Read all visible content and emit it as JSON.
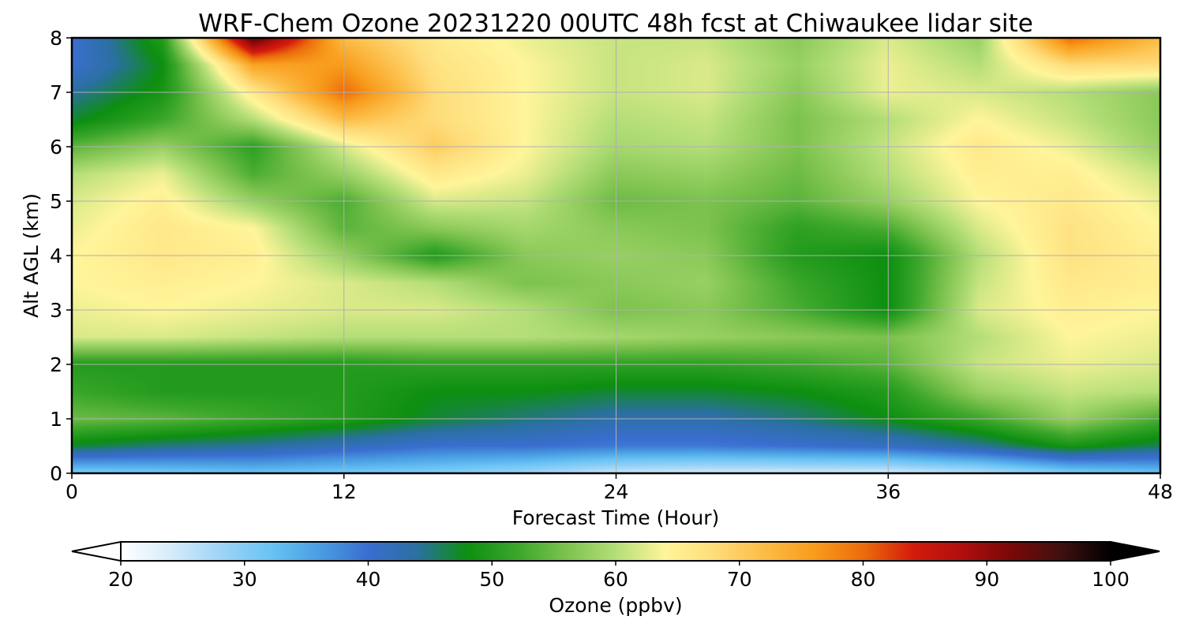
{
  "chart_data": {
    "type": "heatmap",
    "title": "WRF-Chem Ozone  20231220 00UTC 48h fcst at Chiwaukee lidar site",
    "xlabel": "Forecast Time (Hour)",
    "ylabel": "Alt AGL (km)",
    "xlim": [
      0,
      48
    ],
    "ylim": [
      0,
      8
    ],
    "xticks": [
      "0",
      "12",
      "24",
      "36",
      "48"
    ],
    "yticks": [
      "0",
      "1",
      "2",
      "3",
      "4",
      "5",
      "6",
      "7",
      "8"
    ],
    "grid": true,
    "colorbar": {
      "label": "Ozone  (ppbv)",
      "range": [
        20,
        100
      ],
      "ticks": [
        "20",
        "30",
        "40",
        "50",
        "60",
        "70",
        "80",
        "90",
        "100"
      ],
      "extend": "both",
      "colors": [
        "#ffffff",
        "#d6ecfa",
        "#9fd4f6",
        "#6ac4f5",
        "#4a9ee2",
        "#3a6ed0",
        "#2a70a0",
        "#0d8f10",
        "#3aa62a",
        "#7cc24e",
        "#b4de78",
        "#fff59a",
        "#fedc7a",
        "#fcbc45",
        "#f89c1c",
        "#ec6c0c",
        "#d41c0c",
        "#b00e0e",
        "#7a0808",
        "#401010",
        "#000000"
      ]
    },
    "hours": [
      0,
      4,
      8,
      12,
      16,
      20,
      24,
      28,
      32,
      36,
      40,
      44,
      48
    ],
    "altitudes_km": [
      0,
      0.5,
      1,
      1.5,
      2,
      2.5,
      3,
      3.5,
      4,
      4.5,
      5,
      5.5,
      6,
      6.5,
      7,
      7.5,
      8
    ],
    "ozone_ppbv": [
      [
        30,
        31,
        32,
        31,
        30,
        28,
        25,
        24,
        24,
        24,
        26,
        30,
        32
      ],
      [
        47,
        45,
        44,
        42,
        40,
        40,
        39,
        39,
        40,
        41,
        44,
        49,
        46
      ],
      [
        55,
        54,
        52,
        50,
        47,
        45,
        43,
        43,
        45,
        48,
        52,
        58,
        53
      ],
      [
        52,
        50,
        50,
        50,
        48,
        48,
        47,
        47,
        48,
        50,
        58,
        61,
        60
      ],
      [
        50,
        50,
        50,
        50,
        51,
        51,
        51,
        51,
        52,
        54,
        61,
        63,
        62
      ],
      [
        62,
        62,
        61,
        60,
        60,
        60,
        59,
        58,
        57,
        56,
        60,
        64,
        63
      ],
      [
        63,
        64,
        63,
        62,
        62,
        60,
        56,
        57,
        53,
        48,
        62,
        65,
        64
      ],
      [
        64,
        65,
        64,
        62,
        60,
        56,
        57,
        58,
        52,
        48,
        61,
        66,
        65
      ],
      [
        64,
        66,
        65,
        58,
        50,
        57,
        58,
        57,
        50,
        48,
        60,
        67,
        65
      ],
      [
        63,
        66,
        64,
        54,
        57,
        59,
        57,
        56,
        51,
        53,
        62,
        67,
        64
      ],
      [
        62,
        65,
        58,
        53,
        62,
        61,
        55,
        56,
        54,
        58,
        64,
        66,
        63
      ],
      [
        60,
        63,
        53,
        58,
        66,
        63,
        57,
        58,
        55,
        60,
        65,
        65,
        61
      ],
      [
        54,
        58,
        51,
        62,
        70,
        64,
        59,
        60,
        56,
        61,
        66,
        63,
        58
      ],
      [
        47,
        52,
        60,
        72,
        68,
        64,
        60,
        61,
        56,
        60,
        64,
        61,
        57
      ],
      [
        44,
        49,
        66,
        80,
        68,
        64,
        61,
        62,
        57,
        63,
        62,
        60,
        57
      ],
      [
        40,
        48,
        75,
        76,
        67,
        64,
        61,
        62,
        58,
        63,
        60,
        68,
        68
      ],
      [
        40,
        50,
        95,
        72,
        66,
        63,
        61,
        61,
        57,
        62,
        58,
        80,
        72
      ]
    ]
  }
}
